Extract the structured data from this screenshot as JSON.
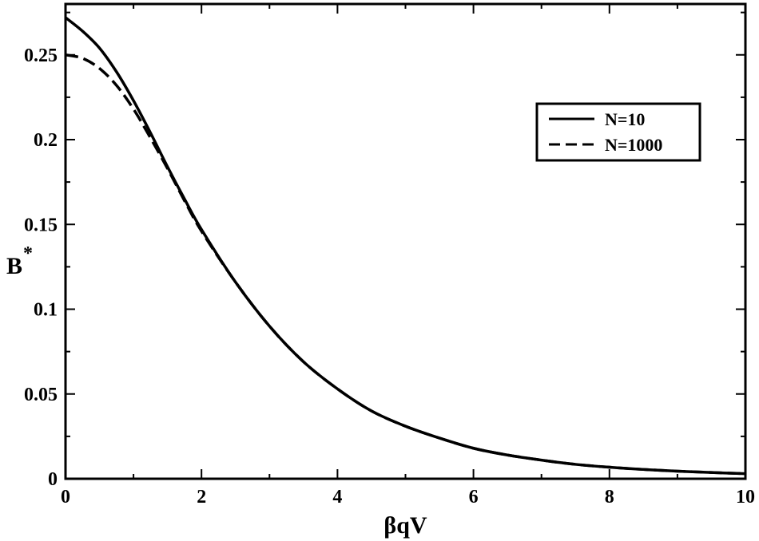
{
  "chart_data": {
    "type": "line",
    "title": "",
    "xlabel": "βqV",
    "ylabel_main": "B",
    "ylabel_sup": "*",
    "xlim": [
      0,
      10
    ],
    "ylim": [
      0,
      0.28
    ],
    "xticks": [
      0,
      2,
      4,
      6,
      8,
      10
    ],
    "xtick_labels": [
      "0",
      "2",
      "4",
      "6",
      "8",
      "10"
    ],
    "yticks": [
      0,
      0.05,
      0.1,
      0.15,
      0.2,
      0.25
    ],
    "ytick_labels": [
      "0",
      "0.05",
      "0.1",
      "0.15",
      "0.2",
      "0.25"
    ],
    "grid": false,
    "legend_position": "top-right",
    "series": [
      {
        "name": "N=10",
        "style": "solid",
        "x": [
          0,
          0.25,
          0.5,
          0.75,
          1.0,
          1.25,
          1.5,
          1.75,
          2.0,
          2.5,
          3.0,
          3.5,
          4.0,
          4.5,
          5.0,
          5.5,
          6.0,
          6.5,
          7.0,
          7.5,
          8.0,
          8.5,
          9.0,
          9.5,
          10.0
        ],
        "y": [
          0.272,
          0.264,
          0.254,
          0.24,
          0.223,
          0.204,
          0.184,
          0.165,
          0.147,
          0.116,
          0.09,
          0.069,
          0.053,
          0.04,
          0.031,
          0.024,
          0.018,
          0.014,
          0.011,
          0.0085,
          0.0068,
          0.0055,
          0.0045,
          0.0037,
          0.003
        ]
      },
      {
        "name": "N=1000",
        "style": "dashed",
        "x": [
          0,
          0.25,
          0.5,
          0.75,
          1.0,
          1.25,
          1.5,
          1.75,
          2.0,
          2.5,
          3.0,
          3.5,
          4.0,
          4.5,
          5.0,
          5.5,
          6.0,
          6.5,
          7.0,
          7.5,
          8.0,
          8.5,
          9.0,
          9.5,
          10.0
        ],
        "y": [
          0.25,
          0.248,
          0.242,
          0.232,
          0.218,
          0.201,
          0.183,
          0.164,
          0.146,
          0.116,
          0.09,
          0.069,
          0.053,
          0.04,
          0.031,
          0.024,
          0.018,
          0.014,
          0.011,
          0.0085,
          0.0068,
          0.0055,
          0.0045,
          0.0037,
          0.003
        ]
      }
    ]
  }
}
